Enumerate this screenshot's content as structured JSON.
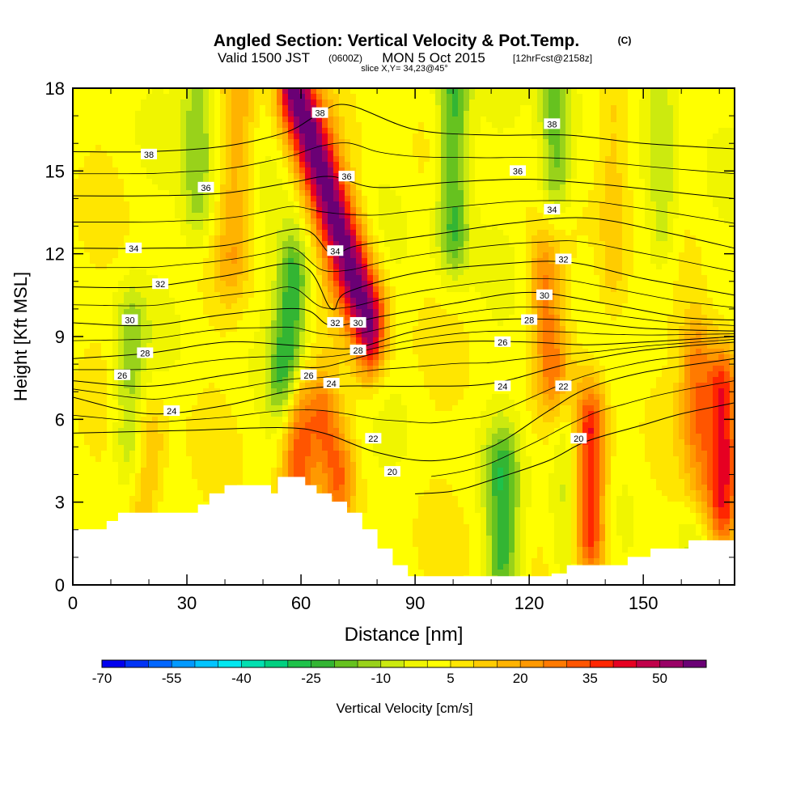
{
  "title": {
    "main": "Angled Section: Vertical Velocity & Pot.Temp.",
    "units": "(C)",
    "valid_prefix": "Valid 1500 JST",
    "valid_utc": "(0600Z)",
    "valid_date": "MON 5 Oct 2015",
    "forecast": "[12hrFcst@2158z]",
    "slice": "slice X,Y= 34,23@45°"
  },
  "chart_data": {
    "type": "heatmap",
    "xlabel": "Distance [nm]",
    "ylabel": "Height [Kft MSL]",
    "xlim": [
      0,
      174
    ],
    "ylim": [
      0,
      18
    ],
    "x_ticks": [
      "0",
      "30",
      "60",
      "90",
      "120",
      "150"
    ],
    "y_ticks": [
      "0",
      "3",
      "6",
      "9",
      "12",
      "15",
      "18"
    ],
    "colorbar": {
      "label": "Vertical Velocity [cm/s]",
      "tick_labels": [
        "-70",
        "-55",
        "-40",
        "-25",
        "-10",
        "5",
        "20",
        "35",
        "50"
      ],
      "levels": [
        -70,
        -65,
        -60,
        -55,
        -50,
        -45,
        -40,
        -35,
        -30,
        -25,
        -20,
        -15,
        -10,
        -5,
        0,
        5,
        10,
        15,
        20,
        25,
        30,
        35,
        40,
        45,
        50,
        55,
        60
      ],
      "colors": [
        "#0000ee",
        "#0033f5",
        "#0066ff",
        "#0099ff",
        "#00c4ff",
        "#00e8f0",
        "#00e0b0",
        "#00d080",
        "#1ec24a",
        "#33b533",
        "#66c21f",
        "#99d21a",
        "#ccea0f",
        "#f0f500",
        "#ffff00",
        "#ffe600",
        "#ffcc00",
        "#ffb300",
        "#ff9900",
        "#ff7a00",
        "#ff5500",
        "#ff2600",
        "#e60022",
        "#c0004a",
        "#990066",
        "#6a0075"
      ]
    },
    "terrain_kft": [
      [
        0,
        2.0
      ],
      [
        6,
        2.0
      ],
      [
        9,
        2.3
      ],
      [
        12,
        2.6
      ],
      [
        24,
        2.6
      ],
      [
        30,
        2.6
      ],
      [
        33,
        2.9
      ],
      [
        36,
        3.3
      ],
      [
        40,
        3.6
      ],
      [
        48,
        3.6
      ],
      [
        52,
        3.3
      ],
      [
        54,
        3.9
      ],
      [
        58,
        3.9
      ],
      [
        61,
        3.6
      ],
      [
        64,
        3.3
      ],
      [
        68,
        3.0
      ],
      [
        72,
        2.6
      ],
      [
        76,
        2.0
      ],
      [
        80,
        1.3
      ],
      [
        84,
        0.7
      ],
      [
        88,
        0.3
      ],
      [
        100,
        0.3
      ],
      [
        112,
        0.3
      ],
      [
        120,
        0.3
      ],
      [
        126,
        0.4
      ],
      [
        130,
        0.7
      ],
      [
        140,
        0.7
      ],
      [
        146,
        1.0
      ],
      [
        152,
        1.3
      ],
      [
        162,
        1.6
      ],
      [
        174,
        1.6
      ]
    ],
    "updraft_wave_cm_s": [
      {
        "x": [
          78,
          58
        ],
        "y": [
          9.5,
          18
        ],
        "peak": 55
      },
      {
        "x": [
          70,
          66
        ],
        "y": [
          4,
          6
        ],
        "peak": 25
      },
      {
        "x": [
          59,
          59
        ],
        "y": [
          3,
          6
        ],
        "peak": 30
      },
      {
        "x": [
          126,
          124
        ],
        "y": [
          8,
          11
        ],
        "peak": 22
      },
      {
        "x": [
          136,
          136
        ],
        "y": [
          2,
          5.5
        ],
        "peak": 38
      },
      {
        "x": [
          171,
          171
        ],
        "y": [
          3,
          7
        ],
        "peak": 40
      },
      {
        "x": [
          164,
          164
        ],
        "y": [
          4,
          8
        ],
        "peak": 25
      },
      {
        "x": [
          19,
          20
        ],
        "y": [
          2.5,
          5
        ],
        "peak": 15
      },
      {
        "x": [
          42,
          44
        ],
        "y": [
          12,
          18
        ],
        "peak": 14
      },
      {
        "x": [
          142,
          142
        ],
        "y": [
          11,
          17
        ],
        "peak": 12
      }
    ],
    "downdraft_wave_cm_s": [
      {
        "x": [
          56,
          58
        ],
        "y": [
          7.5,
          11
        ],
        "peak": -28
      },
      {
        "x": [
          100,
          100
        ],
        "y": [
          13,
          18
        ],
        "peak": -26
      },
      {
        "x": [
          127,
          127
        ],
        "y": [
          15,
          18
        ],
        "peak": -22
      },
      {
        "x": [
          113,
          113
        ],
        "y": [
          1,
          4
        ],
        "peak": -24
      },
      {
        "x": [
          130,
          130
        ],
        "y": [
          1,
          5
        ],
        "peak": -12
      },
      {
        "x": [
          33,
          33
        ],
        "y": [
          14,
          18
        ],
        "peak": -18
      },
      {
        "x": [
          15,
          15
        ],
        "y": [
          5.5,
          9
        ],
        "peak": -16
      },
      {
        "x": [
          163,
          163
        ],
        "y": [
          1.6,
          3.5
        ],
        "peak": -12
      },
      {
        "x": [
          155,
          155
        ],
        "y": [
          13,
          18
        ],
        "peak": -14
      }
    ],
    "pot_temp_contours": [
      {
        "label": "20",
        "points": [
          [
            90,
            3.3
          ],
          [
            100,
            3.4
          ],
          [
            110,
            3.8
          ],
          [
            125,
            4.5
          ],
          [
            135,
            5.2
          ],
          [
            150,
            5.8
          ],
          [
            160,
            6.2
          ],
          [
            174,
            6.6
          ]
        ],
        "label_at": [
          84,
          4.1
        ]
      },
      {
        "label": "22",
        "points": [
          [
            0,
            5.5
          ],
          [
            30,
            5.6
          ],
          [
            55,
            5.7
          ],
          [
            66,
            5.5
          ],
          [
            80,
            4.8
          ],
          [
            95,
            4.5
          ],
          [
            110,
            5.0
          ],
          [
            125,
            6.3
          ],
          [
            135,
            7.1
          ],
          [
            150,
            7.7
          ],
          [
            174,
            8.2
          ]
        ],
        "label_at": [
          78,
          5.3
        ]
      },
      {
        "label": "24",
        "points": [
          [
            0,
            6.8
          ],
          [
            20,
            6.2
          ],
          [
            40,
            6.5
          ],
          [
            56,
            7.0
          ],
          [
            70,
            7.2
          ],
          [
            90,
            7.2
          ],
          [
            110,
            7.3
          ],
          [
            130,
            8.0
          ],
          [
            150,
            8.5
          ],
          [
            174,
            8.8
          ]
        ],
        "label_at": [
          28,
          6.5
        ]
      },
      {
        "label": "26",
        "points": [
          [
            0,
            7.4
          ],
          [
            20,
            7.2
          ],
          [
            40,
            7.6
          ],
          [
            56,
            7.9
          ],
          [
            66,
            7.9
          ],
          [
            80,
            8.4
          ],
          [
            100,
            8.8
          ],
          [
            120,
            8.8
          ],
          [
            135,
            8.7
          ],
          [
            150,
            8.8
          ],
          [
            174,
            9.0
          ]
        ],
        "label_at": [
          13,
          7.6
        ]
      },
      {
        "label": "28",
        "points": [
          [
            0,
            8.2
          ],
          [
            20,
            8.4
          ],
          [
            40,
            8.8
          ],
          [
            56,
            8.7
          ],
          [
            66,
            8.6
          ],
          [
            75,
            8.6
          ],
          [
            90,
            9.2
          ],
          [
            110,
            9.6
          ],
          [
            130,
            9.6
          ],
          [
            150,
            9.3
          ],
          [
            174,
            9.2
          ]
        ],
        "label_at": [
          18,
          8.4
        ]
      },
      {
        "label": "30",
        "points": [
          [
            0,
            9.5
          ],
          [
            20,
            9.4
          ],
          [
            40,
            9.8
          ],
          [
            60,
            10.0
          ],
          [
            68,
            9.4
          ],
          [
            80,
            9.7
          ],
          [
            100,
            10.2
          ],
          [
            120,
            10.6
          ],
          [
            140,
            10.2
          ],
          [
            160,
            9.7
          ],
          [
            174,
            9.6
          ]
        ],
        "label_at": [
          15,
          9.6
        ]
      },
      {
        "label": "32",
        "points": [
          [
            0,
            10.8
          ],
          [
            20,
            10.8
          ],
          [
            40,
            11.2
          ],
          [
            60,
            11.6
          ],
          [
            68,
            10.0
          ],
          [
            72,
            10.6
          ],
          [
            90,
            11.3
          ],
          [
            110,
            11.6
          ],
          [
            130,
            11.7
          ],
          [
            150,
            11.1
          ],
          [
            174,
            10.5
          ]
        ],
        "label_at": [
          28,
          10.7
        ]
      },
      {
        "label": "34",
        "points": [
          [
            0,
            12.2
          ],
          [
            20,
            12.2
          ],
          [
            40,
            12.3
          ],
          [
            60,
            12.9
          ],
          [
            68,
            12.0
          ],
          [
            75,
            12.3
          ],
          [
            95,
            12.7
          ],
          [
            115,
            13.1
          ],
          [
            135,
            13.3
          ],
          [
            155,
            12.8
          ],
          [
            174,
            12.2
          ]
        ],
        "label_at": [
          16,
          12.2
        ]
      },
      {
        "label": "36",
        "points": [
          [
            0,
            14.1
          ],
          [
            20,
            14.1
          ],
          [
            40,
            14.2
          ],
          [
            58,
            14.6
          ],
          [
            68,
            14.8
          ],
          [
            80,
            14.4
          ],
          [
            100,
            14.6
          ],
          [
            120,
            14.7
          ],
          [
            140,
            14.5
          ],
          [
            160,
            14.2
          ],
          [
            174,
            14.0
          ]
        ],
        "label_at": [
          35,
          14.4
        ]
      },
      {
        "label": "38",
        "points": [
          [
            0,
            15.7
          ],
          [
            20,
            15.7
          ],
          [
            40,
            15.9
          ],
          [
            56,
            16.4
          ],
          [
            64,
            17.0
          ],
          [
            72,
            17.4
          ],
          [
            90,
            16.5
          ],
          [
            110,
            16.3
          ],
          [
            130,
            16.3
          ],
          [
            150,
            16.0
          ],
          [
            174,
            15.8
          ]
        ],
        "label_at": [
          20,
          15.6
        ]
      }
    ],
    "labels": [
      {
        "text": "38",
        "x": 20,
        "y": 15.6
      },
      {
        "text": "36",
        "x": 35,
        "y": 14.4
      },
      {
        "text": "34",
        "x": 16,
        "y": 12.2
      },
      {
        "text": "32",
        "x": 23,
        "y": 10.9
      },
      {
        "text": "30",
        "x": 15,
        "y": 9.6
      },
      {
        "text": "28",
        "x": 19,
        "y": 8.4
      },
      {
        "text": "26",
        "x": 13,
        "y": 7.6
      },
      {
        "text": "24",
        "x": 26,
        "y": 6.3
      },
      {
        "text": "38",
        "x": 65,
        "y": 17.1
      },
      {
        "text": "36",
        "x": 72,
        "y": 14.8
      },
      {
        "text": "34",
        "x": 69,
        "y": 12.1
      },
      {
        "text": "32",
        "x": 69,
        "y": 9.5
      },
      {
        "text": "30",
        "x": 75,
        "y": 9.5
      },
      {
        "text": "28",
        "x": 75,
        "y": 8.5
      },
      {
        "text": "26",
        "x": 62,
        "y": 7.6
      },
      {
        "text": "24",
        "x": 68,
        "y": 7.3
      },
      {
        "text": "22",
        "x": 79,
        "y": 5.3
      },
      {
        "text": "20",
        "x": 84,
        "y": 4.1
      },
      {
        "text": "38",
        "x": 126,
        "y": 16.7
      },
      {
        "text": "36",
        "x": 117,
        "y": 15.0
      },
      {
        "text": "34",
        "x": 126,
        "y": 13.6
      },
      {
        "text": "32",
        "x": 129,
        "y": 11.8
      },
      {
        "text": "30",
        "x": 124,
        "y": 10.5
      },
      {
        "text": "28",
        "x": 120,
        "y": 9.6
      },
      {
        "text": "26",
        "x": 113,
        "y": 8.8
      },
      {
        "text": "24",
        "x": 113,
        "y": 7.2
      },
      {
        "text": "22",
        "x": 129,
        "y": 7.2
      },
      {
        "text": "20",
        "x": 133,
        "y": 5.3
      }
    ]
  }
}
